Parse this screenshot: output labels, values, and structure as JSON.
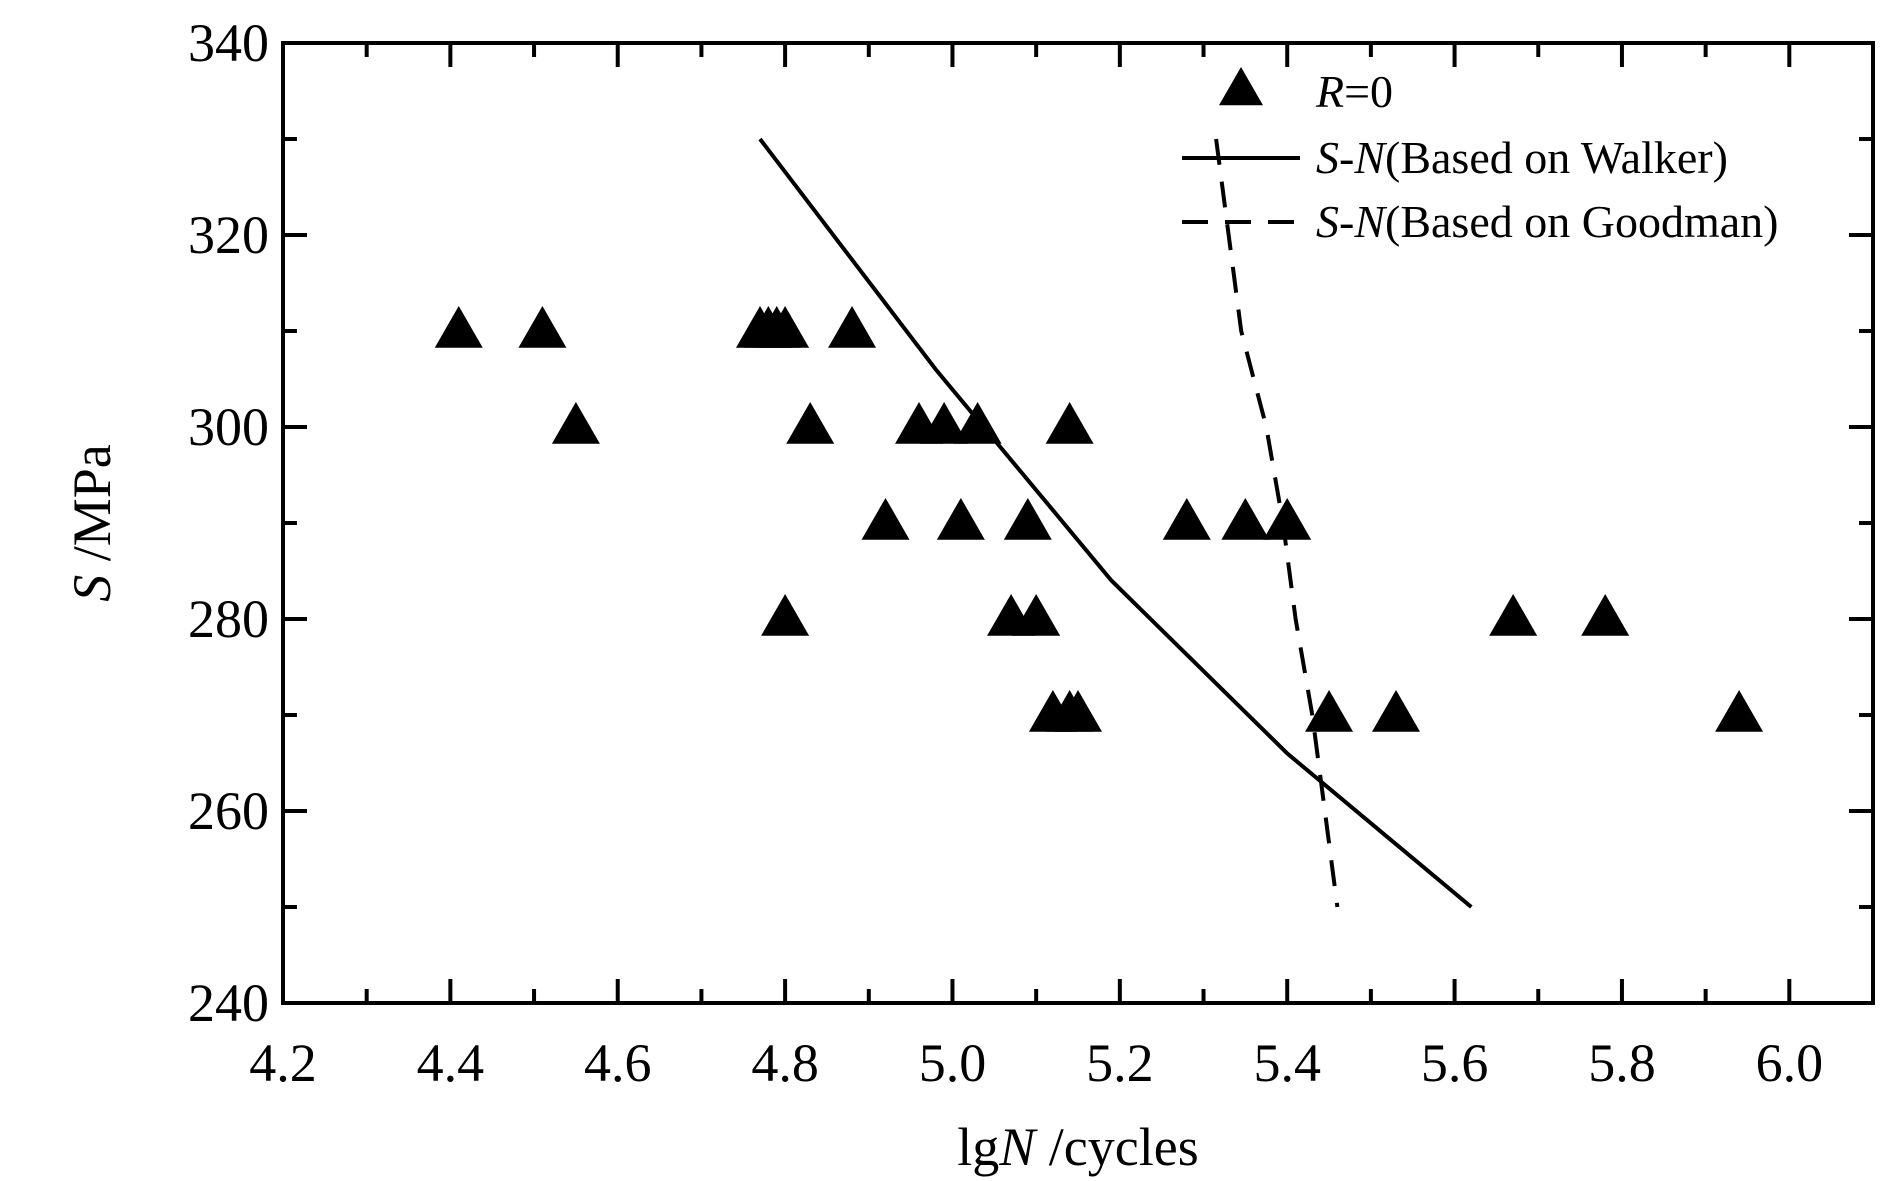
{
  "chart_data": {
    "type": "scatter",
    "xlabel": {
      "italic": "N",
      "prefix": "lg",
      "suffix": " /cycles"
    },
    "ylabel": {
      "italic": "S",
      "suffix": " /MPa"
    },
    "xlim": [
      4.2,
      6.1
    ],
    "ylim": [
      240,
      340
    ],
    "x_ticks": [
      4.2,
      4.4,
      4.6,
      4.8,
      5.0,
      5.2,
      5.4,
      5.6,
      5.8,
      6.0
    ],
    "x_tick_labels": [
      "4.2",
      "4.4",
      "4.6",
      "4.8",
      "5.0",
      "5.2",
      "5.4",
      "5.6",
      "5.8",
      "6.0"
    ],
    "x_minor_ticks": [
      4.3,
      4.5,
      4.7,
      4.9,
      5.1,
      5.3,
      5.5,
      5.7,
      5.9,
      6.1
    ],
    "y_ticks": [
      240,
      260,
      280,
      300,
      320,
      340
    ],
    "y_tick_labels": [
      "240",
      "260",
      "280",
      "300",
      "320",
      "340"
    ],
    "y_minor_ticks": [
      250,
      270,
      290,
      310,
      330
    ],
    "grid": false,
    "legend_position": "top-right",
    "series": [
      {
        "name": "R=0",
        "legend_label": {
          "italic": "R",
          "rest": "=0"
        },
        "kind": "scatter",
        "marker": "triangle",
        "color": "#000000",
        "points": [
          [
            4.41,
            310
          ],
          [
            4.51,
            310
          ],
          [
            4.55,
            300
          ],
          [
            4.77,
            310
          ],
          [
            4.78,
            310
          ],
          [
            4.79,
            310
          ],
          [
            4.8,
            310
          ],
          [
            4.88,
            310
          ],
          [
            4.83,
            300
          ],
          [
            4.96,
            300
          ],
          [
            4.99,
            300
          ],
          [
            5.03,
            300
          ],
          [
            5.14,
            300
          ],
          [
            4.92,
            290
          ],
          [
            5.01,
            290
          ],
          [
            5.09,
            290
          ],
          [
            5.28,
            290
          ],
          [
            5.35,
            290
          ],
          [
            5.4,
            290
          ],
          [
            4.8,
            280
          ],
          [
            5.07,
            280
          ],
          [
            5.1,
            280
          ],
          [
            5.67,
            280
          ],
          [
            5.78,
            280
          ],
          [
            5.12,
            270
          ],
          [
            5.14,
            270
          ],
          [
            5.15,
            270
          ],
          [
            5.45,
            270
          ],
          [
            5.53,
            270
          ],
          [
            5.94,
            270
          ]
        ]
      },
      {
        "name": "S-N(Based on Walker)",
        "legend_label": {
          "italic_a": "S",
          "dash": "-",
          "italic_b": "N",
          "rest": "(Based on Walker)"
        },
        "kind": "line",
        "dash": "solid",
        "color": "#000000",
        "points": [
          [
            4.77,
            330
          ],
          [
            4.98,
            306
          ],
          [
            5.19,
            284
          ],
          [
            5.4,
            266
          ],
          [
            5.62,
            250
          ]
        ]
      },
      {
        "name": "S-N(Based on Goodman)",
        "legend_label": {
          "italic_a": "S",
          "dash": "-",
          "italic_b": "N",
          "rest": "(Based on Goodman)"
        },
        "kind": "line",
        "dash": "dashed",
        "color": "#000000",
        "points": [
          [
            5.315,
            330
          ],
          [
            5.345,
            310
          ],
          [
            5.375,
            300
          ],
          [
            5.395,
            290
          ],
          [
            5.41,
            280
          ],
          [
            5.43,
            270
          ],
          [
            5.46,
            250
          ]
        ]
      }
    ]
  }
}
